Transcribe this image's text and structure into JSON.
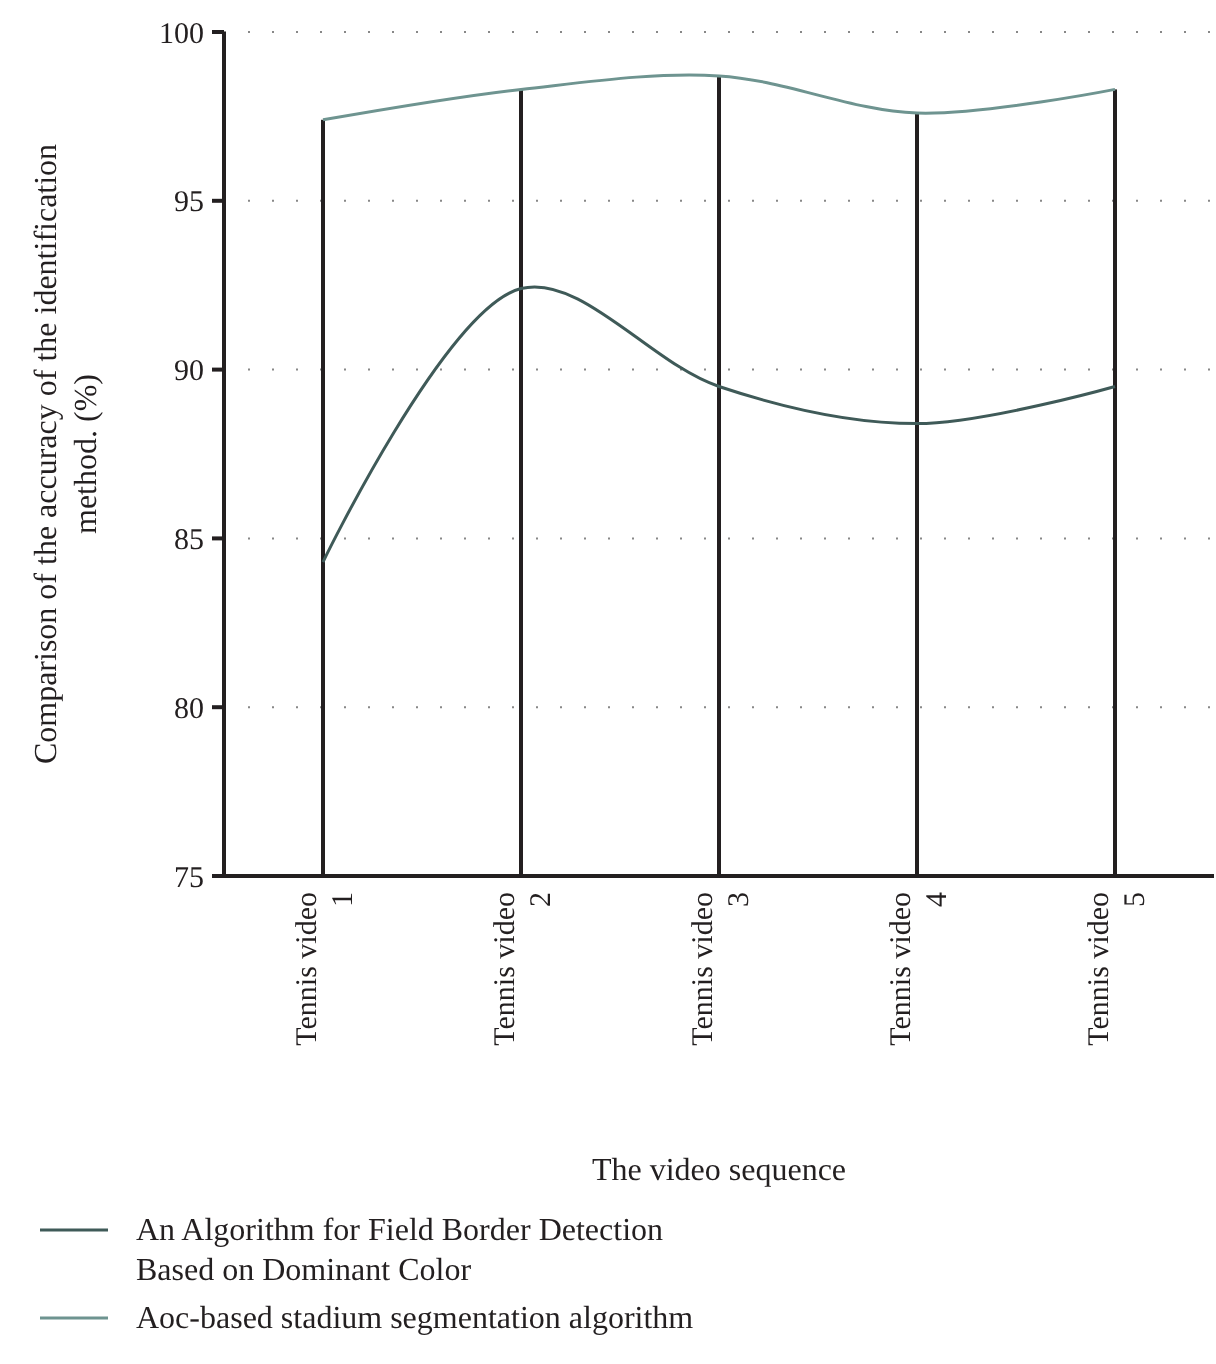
{
  "chart_data": {
    "type": "line",
    "xlabel": "The video sequence",
    "ylabel": "Comparison of the accuracy of the identification method. (%)",
    "categories": [
      "Tennis video 1",
      "Tennis video 2",
      "Tennis video 3",
      "Tennis video 4",
      "Tennis video 5"
    ],
    "series": [
      {
        "type": "bar",
        "color": "#231f20",
        "values": [
          97.4,
          98.3,
          98.7,
          97.6,
          98.3
        ]
      },
      {
        "name": "An Algorithm for Field Border Detection Based on Dominant Color",
        "color": "#3f5a58",
        "values": [
          84.3,
          92.4,
          89.5,
          88.4,
          89.5
        ]
      },
      {
        "name": "Aoc-based stadium segmentation algorithm",
        "color": "#6e9490",
        "values": [
          97.4,
          98.3,
          98.7,
          97.6,
          98.3
        ]
      }
    ],
    "ylim": [
      75,
      100
    ],
    "yticks": [
      75,
      80,
      85,
      90,
      95,
      100
    ],
    "grid": "y",
    "legend": "bottom",
    "marker": "none",
    "line_style": "solid"
  }
}
